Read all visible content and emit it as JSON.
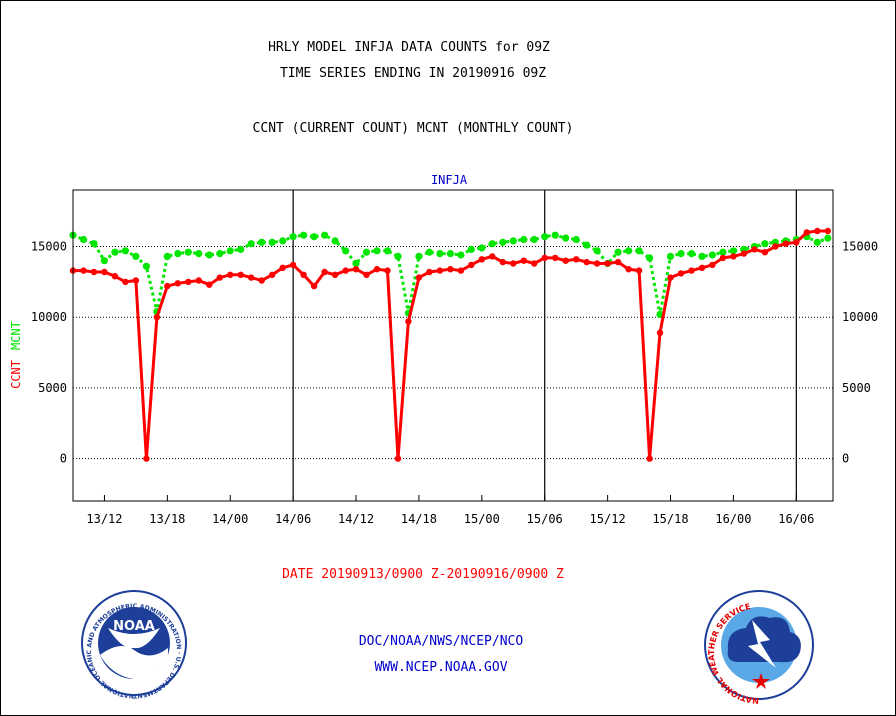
{
  "header": {
    "title_line1": "HRLY MODEL INFJA DATA COUNTS for 09Z",
    "title_line2": "TIME SERIES ENDING IN 20190916 09Z",
    "subtitle": "CCNT (CURRENT COUNT) MCNT (MONTHLY COUNT)"
  },
  "footer": {
    "date_range": "DATE 20190913/0900 Z-20190916/0900 Z",
    "org_line": "DOC/NOAA/NWS/NCEP/NCO",
    "url_line": "WWW.NCEP.NOAA.GOV"
  },
  "logos": {
    "noaa": {
      "text": "NOAA",
      "ring_text": "NATIONAL OCEANIC AND ATMOSPHERIC ADMINISTRATION · U.S. DEPARTMENT OF COMMERCE"
    },
    "nws": {
      "ring_text": "NATIONAL WEATHER SERVICE"
    }
  },
  "colors": {
    "ccnt": "#ff0000",
    "mcnt": "#00e600",
    "axis": "#000000",
    "panel_title": "#0000cc"
  },
  "chart_data": {
    "type": "line",
    "title": "INFJA",
    "ylabel_left": [
      "CCNT",
      "MCNT"
    ],
    "ylim": [
      -3000,
      19000
    ],
    "yticks": [
      0,
      5000,
      10000,
      15000
    ],
    "ytick_labels": [
      "0",
      "5000",
      "10000",
      "15000"
    ],
    "xlim_hours": [
      0,
      72.5
    ],
    "xtick_hours": [
      3,
      9,
      15,
      21,
      27,
      33,
      39,
      45,
      51,
      57,
      63,
      69
    ],
    "xtick_labels": [
      "13/12",
      "13/18",
      "14/00",
      "14/06",
      "14/12",
      "14/18",
      "15/00",
      "15/06",
      "15/12",
      "15/18",
      "16/00",
      "16/06"
    ],
    "day_separator_hours": [
      21,
      45,
      69
    ],
    "grid": "horizontal dotted",
    "series": [
      {
        "name": "CCNT",
        "hours": [
          0,
          1,
          2,
          3,
          4,
          5,
          6,
          7,
          8,
          9,
          10,
          11,
          12,
          13,
          14,
          15,
          16,
          17,
          18,
          19,
          20,
          21,
          22,
          23,
          24,
          25,
          26,
          27,
          28,
          29,
          30,
          31,
          32,
          33,
          34,
          35,
          36,
          37,
          38,
          39,
          40,
          41,
          42,
          43,
          44,
          45,
          46,
          47,
          48,
          49,
          50,
          51,
          52,
          53,
          54,
          55,
          56,
          57,
          58,
          59,
          60,
          61,
          62,
          63,
          64,
          65,
          66,
          67,
          68,
          69,
          70,
          71,
          72
        ],
        "values": [
          13300,
          13300,
          13200,
          13200,
          12900,
          12500,
          12600,
          0,
          10000,
          12200,
          12400,
          12500,
          12600,
          12300,
          12800,
          13000,
          13000,
          12800,
          12600,
          13000,
          13500,
          13700,
          13000,
          12200,
          13200,
          13000,
          13300,
          13400,
          13000,
          13400,
          13300,
          0,
          9700,
          12800,
          13200,
          13300,
          13400,
          13300,
          13700,
          14100,
          14300,
          13900,
          13800,
          14000,
          13800,
          14200,
          14200,
          14000,
          14100,
          13900,
          13800,
          13800,
          13900,
          13400,
          13300,
          0,
          8900,
          12800,
          13100,
          13300,
          13500,
          13700,
          14200,
          14300,
          14500,
          14800,
          14600,
          15000,
          15200,
          15300,
          16000,
          16100,
          16100
        ]
      },
      {
        "name": "MCNT",
        "hours": [
          0,
          1,
          2,
          3,
          4,
          5,
          6,
          7,
          8,
          9,
          10,
          11,
          12,
          13,
          14,
          15,
          16,
          17,
          18,
          19,
          20,
          21,
          22,
          23,
          24,
          25,
          26,
          27,
          28,
          29,
          30,
          31,
          32,
          33,
          34,
          35,
          36,
          37,
          38,
          39,
          40,
          41,
          42,
          43,
          44,
          45,
          46,
          47,
          48,
          49,
          50,
          51,
          52,
          53,
          54,
          55,
          56,
          57,
          58,
          59,
          60,
          61,
          62,
          63,
          64,
          65,
          66,
          67,
          68,
          69,
          70,
          71,
          72
        ],
        "values": [
          15800,
          15500,
          15200,
          14000,
          14600,
          14700,
          14300,
          13600,
          10400,
          14300,
          14500,
          14600,
          14500,
          14400,
          14500,
          14700,
          14800,
          15200,
          15300,
          15300,
          15400,
          15700,
          15800,
          15700,
          15800,
          15400,
          14700,
          13800,
          14600,
          14700,
          14700,
          14300,
          10300,
          14300,
          14600,
          14500,
          14500,
          14400,
          14800,
          14900,
          15200,
          15300,
          15400,
          15500,
          15500,
          15700,
          15800,
          15600,
          15500,
          15100,
          14700,
          13800,
          14600,
          14700,
          14700,
          14200,
          10200,
          14300,
          14500,
          14500,
          14300,
          14400,
          14600,
          14700,
          14800,
          15000,
          15200,
          15300,
          15400,
          15500,
          15700,
          15300,
          15600
        ]
      }
    ]
  }
}
